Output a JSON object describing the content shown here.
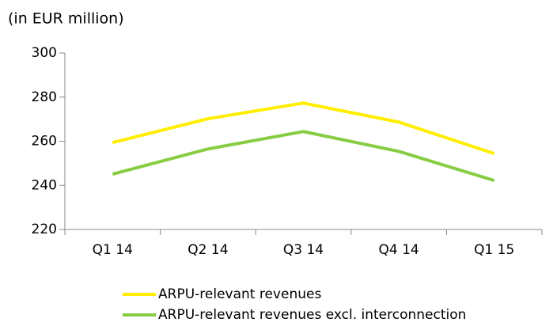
{
  "chart_data": {
    "type": "line",
    "title": "(in EUR million)",
    "categories": [
      "Q1 14",
      "Q2 14",
      "Q3 14",
      "Q4 14",
      "Q1 15"
    ],
    "series": [
      {
        "name": "ARPU-relevant revenues",
        "color": "#ffee00",
        "values": [
          259.4,
          270.2,
          277.3,
          268.7,
          254.4
        ]
      },
      {
        "name": "ARPU-relevant revenues excl. interconnection",
        "color": "#88cc44",
        "values": [
          245.1,
          256.5,
          264.4,
          255.4,
          242.2
        ]
      }
    ],
    "ylim": [
      220,
      300
    ],
    "yticks": [
      220,
      240,
      260,
      280,
      300
    ]
  }
}
